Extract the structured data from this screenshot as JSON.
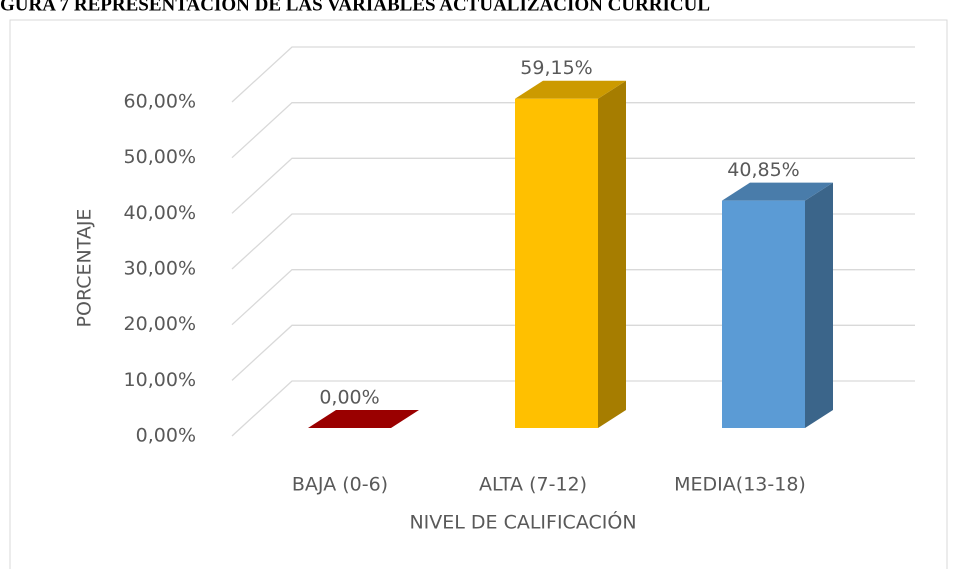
{
  "chart_data": {
    "type": "bar3d",
    "title": "GURA 7 REPRESENTACIÓN DE LAS VARIABLES ACTUALIZACIÓN CURRICUL",
    "x_label": "NIVEL DE CALIFICACIÓN",
    "y_label": "PORCENTAJE",
    "categories": [
      "BAJA (0-6)",
      "ALTA (7-12)",
      "MEDIA(13-18)"
    ],
    "values": [
      0,
      59.15,
      40.85
    ],
    "value_labels": [
      "0,00%",
      "59,15%",
      "40,85%"
    ],
    "colors": [
      "#c00000",
      "#ffc000",
      "#5b9bd5"
    ],
    "ylim": [
      0,
      60
    ],
    "yticks": [
      {
        "value": 0,
        "label": "0,00%"
      },
      {
        "value": 10,
        "label": "10,00%"
      },
      {
        "value": 20,
        "label": "20,00%"
      },
      {
        "value": 30,
        "label": "30,00%"
      },
      {
        "value": 40,
        "label": "40,00%"
      },
      {
        "value": 50,
        "label": "50,00%"
      },
      {
        "value": 60,
        "label": "60,00%"
      }
    ],
    "grid": true
  }
}
